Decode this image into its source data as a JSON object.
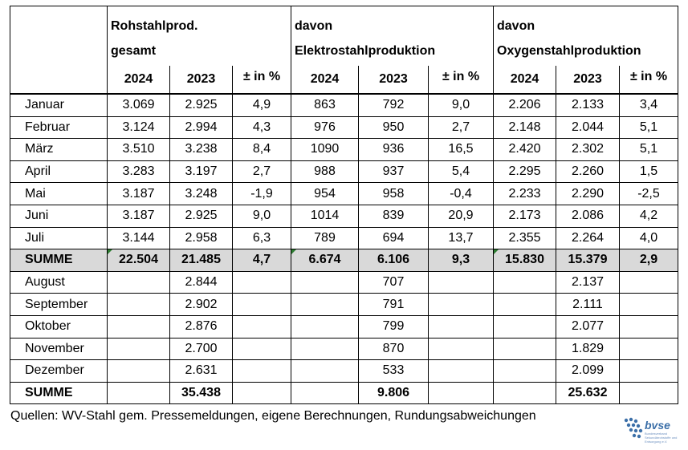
{
  "headers": {
    "group1_line1": "Rohstahlprod.",
    "group1_line2": "gesamt",
    "group2_line1": "davon",
    "group2_line2": "Elektrostahlproduktion",
    "group3_line1": "davon",
    "group3_line2": "Oxygenstahlproduktion",
    "year_current": "2024",
    "year_previous": "2023",
    "pct_label": "± in %"
  },
  "months_2024": [
    {
      "month": "Januar",
      "v": [
        "3.069",
        "2.925",
        "4,9",
        "863",
        "792",
        "9,0",
        "2.206",
        "2.133",
        "3,4"
      ]
    },
    {
      "month": "Februar",
      "v": [
        "3.124",
        "2.994",
        "4,3",
        "976",
        "950",
        "2,7",
        "2.148",
        "2.044",
        "5,1"
      ]
    },
    {
      "month": "März",
      "v": [
        "3.510",
        "3.238",
        "8,4",
        "1090",
        "936",
        "16,5",
        "2.420",
        "2.302",
        "5,1"
      ]
    },
    {
      "month": "April",
      "v": [
        "3.283",
        "3.197",
        "2,7",
        "988",
        "937",
        "5,4",
        "2.295",
        "2.260",
        "1,5"
      ]
    },
    {
      "month": "Mai",
      "v": [
        "3.187",
        "3.248",
        "-1,9",
        "954",
        "958",
        "-0,4",
        "2.233",
        "2.290",
        "-2,5"
      ]
    },
    {
      "month": "Juni",
      "v": [
        "3.187",
        "2.925",
        "9,0",
        "1014",
        "839",
        "20,9",
        "2.173",
        "2.086",
        "4,2"
      ]
    },
    {
      "month": "Juli",
      "v": [
        "3.144",
        "2.958",
        "6,3",
        "789",
        "694",
        "13,7",
        "2.355",
        "2.264",
        "4,0"
      ]
    }
  ],
  "summe_2024": {
    "label": "SUMME",
    "v": [
      "22.504",
      "21.485",
      "4,7",
      "6.674",
      "6.106",
      "9,3",
      "15.830",
      "15.379",
      "2,9"
    ]
  },
  "months_rest": [
    {
      "month": "August",
      "v": [
        "",
        "2.844",
        "",
        "",
        "707",
        "",
        "",
        "2.137",
        ""
      ]
    },
    {
      "month": "September",
      "v": [
        "",
        "2.902",
        "",
        "",
        "791",
        "",
        "",
        "2.111",
        ""
      ]
    },
    {
      "month": "Oktober",
      "v": [
        "",
        "2.876",
        "",
        "",
        "799",
        "",
        "",
        "2.077",
        ""
      ]
    },
    {
      "month": "November",
      "v": [
        "",
        "2.700",
        "",
        "",
        "870",
        "",
        "",
        "1.829",
        ""
      ]
    },
    {
      "month": "Dezember",
      "v": [
        "",
        "2.631",
        "",
        "",
        "533",
        "",
        "",
        "2.099",
        ""
      ]
    }
  ],
  "summe_total": {
    "label": "SUMME",
    "v": [
      "",
      "35.438",
      "",
      "",
      "9.806",
      "",
      "",
      "25.632",
      ""
    ]
  },
  "source_note": "Quellen: WV-Stahl gem. Pressemeldungen, eigene Berechnungen, Rundungsabweichungen",
  "logo": {
    "word": "bvse",
    "tagline": "Bundesverband Sekundärrohstoffe und Entsorgung e.V."
  },
  "colors": {
    "summe_row_bg": "#d9d9d9",
    "logo_blue": "#3b6fa8"
  }
}
